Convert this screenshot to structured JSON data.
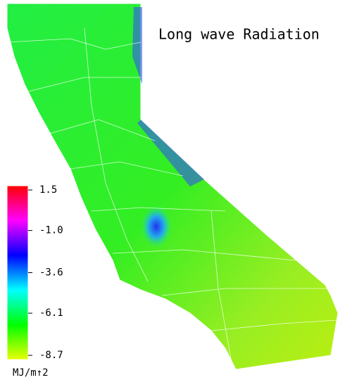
{
  "chart_data": {
    "type": "colormap-map",
    "title": "Long wave Radiation",
    "colorbar_label": "MJ/m↑2",
    "clim": [
      -8.7,
      1.5
    ],
    "colorbar_ticks": [
      1.5,
      {
        "value": -1.0,
        "label": "-1.0"
      },
      -3.6,
      -6.1,
      -8.7
    ],
    "colormap": [
      "#e8ff00",
      "#00ff00",
      "#00ffff",
      "#0000ff",
      "#ff00ff",
      "#ff0000"
    ]
  }
}
